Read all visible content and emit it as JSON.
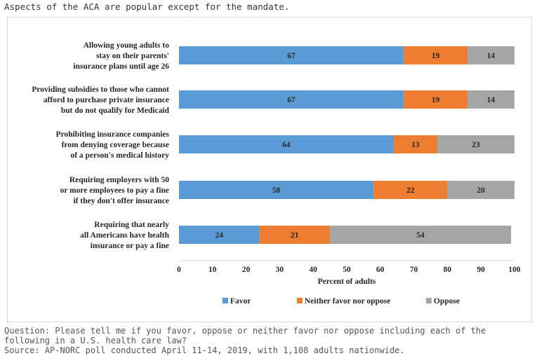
{
  "headline": "Aspects of the ACA are popular except for the mandate.",
  "footer": {
    "question_line1": "Question: Please tell me if you favor, oppose or neither favor nor oppose including each of the",
    "question_line2": "following in a U.S. health care law?",
    "source": "Source: AP-NORC poll conducted April 11-14, 2019, with 1,108 adults nationwide."
  },
  "chart_data": {
    "type": "bar",
    "orientation": "horizontal",
    "stacked": true,
    "categories": [
      [
        "Allowing young adults to",
        "stay on their parents'",
        "insurance plans until age 26"
      ],
      [
        "Providing subsidies to those who cannot",
        "afford to purchase private insurance",
        "but do not qualify for Medicaid"
      ],
      [
        "Prohibiting insurance companies",
        "from denying coverage because",
        "of a person's medical history"
      ],
      [
        "Requiring employers with 50",
        "or more employees to pay a fine",
        "if they don't offer insurance"
      ],
      [
        "Requiring that nearly",
        "all Americans have health",
        "insurance or pay a fine"
      ]
    ],
    "series": [
      {
        "name": "Favor",
        "color": "#5b9bd5",
        "values": [
          67,
          67,
          64,
          58,
          24
        ]
      },
      {
        "name": "Neither favor nor oppose",
        "color": "#ed7d31",
        "values": [
          19,
          19,
          13,
          22,
          21
        ]
      },
      {
        "name": "Oppose",
        "color": "#a5a5a5",
        "values": [
          14,
          14,
          23,
          20,
          54
        ]
      }
    ],
    "xlabel": "Percent of adults",
    "xlim": [
      0,
      100
    ],
    "xticks": [
      0,
      10,
      20,
      30,
      40,
      50,
      60,
      70,
      80,
      90,
      100
    ],
    "legend": "bottom",
    "grid": false
  }
}
